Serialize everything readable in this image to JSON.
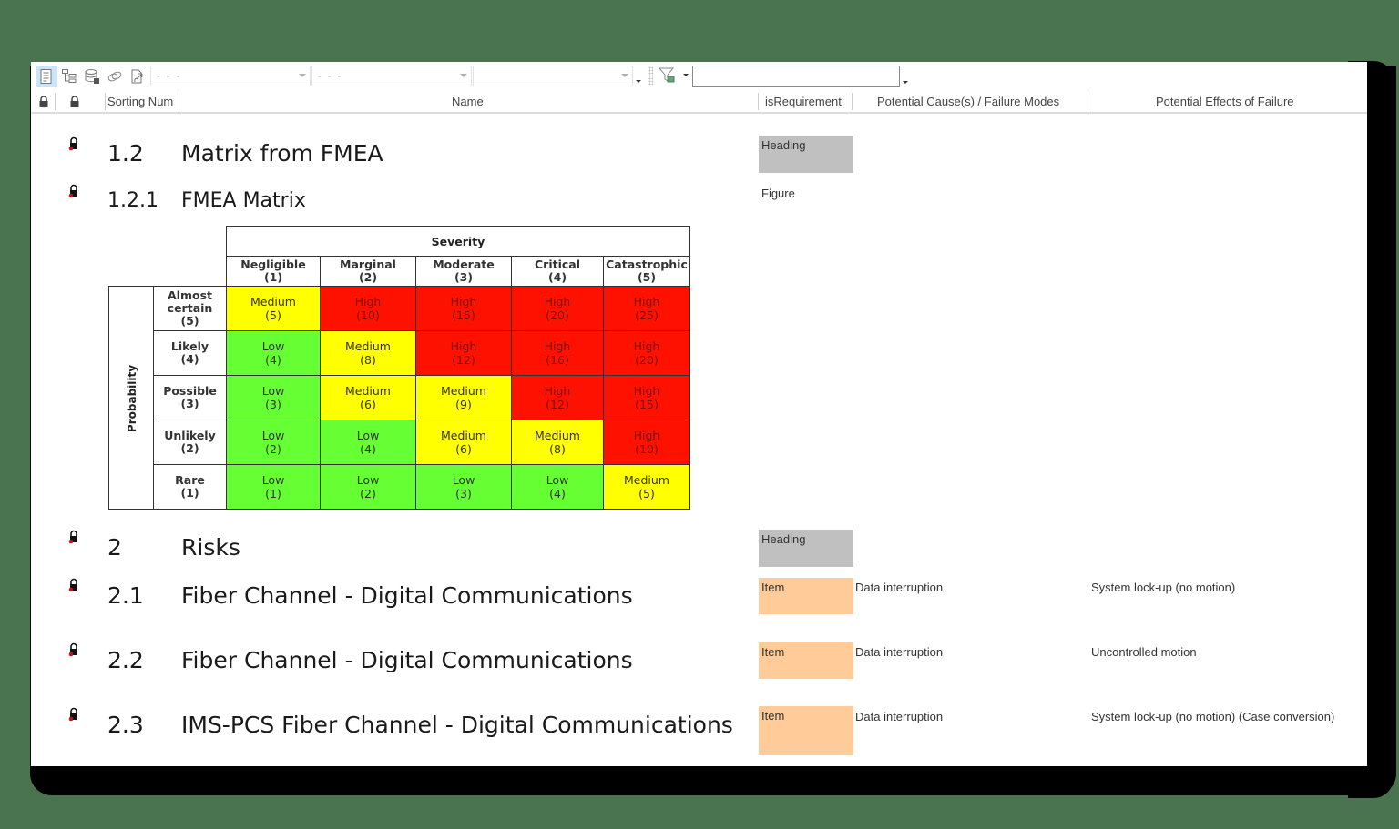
{
  "toolbar": {
    "buttons": [
      {
        "icon": "document-view-icon",
        "active": true
      },
      {
        "icon": "tree-view-icon",
        "active": false
      },
      {
        "icon": "database-icon",
        "active": false
      },
      {
        "icon": "link-icon",
        "active": false
      },
      {
        "icon": "export-icon",
        "active": false
      }
    ],
    "combo1": {
      "value": "- - -"
    },
    "combo2": {
      "value": "- - -"
    },
    "combo3": {
      "value": ""
    },
    "filter_icon": "filter-icon",
    "search": {
      "value": "",
      "placeholder": ""
    }
  },
  "columns": {
    "lock1": "lock-icon",
    "lock2": "lock-icon",
    "sorting_num": "Sorting Num",
    "name": "Name",
    "is_requirement": "isRequirement",
    "potential_causes": "Potential Cause(s) / Failure Modes",
    "potential_effects": "Potential Effects of Failure"
  },
  "rows": [
    {
      "num": "1.2",
      "title": "Matrix from FMEA",
      "type": "Heading",
      "cause": "",
      "effect": ""
    },
    {
      "num": "1.2.1",
      "title": "FMEA Matrix",
      "type": "Figure",
      "cause": "",
      "effect": ""
    },
    {
      "num": "2",
      "title": "Risks",
      "type": "Heading",
      "cause": "",
      "effect": ""
    },
    {
      "num": "2.1",
      "title": "Fiber Channel - Digital Communications",
      "type": "Item",
      "cause": "Data interruption",
      "effect": "System lock-up (no motion)"
    },
    {
      "num": "2.2",
      "title": "Fiber Channel - Digital Communications",
      "type": "Item",
      "cause": "Data interruption",
      "effect": "Uncontrolled motion"
    },
    {
      "num": "2.3",
      "title": "IMS-PCS Fiber Channel - Digital Communications",
      "type": "Item",
      "cause": "Data interruption",
      "effect": "System lock-up (no motion) (Case conversion)"
    }
  ],
  "colors": {
    "heading_tag": "#c0c0c0",
    "item_tag": "#ffcc99",
    "low": "#66ff33",
    "medium": "#ffff00",
    "high": "#ff1100"
  },
  "matrix": {
    "severity_label": "Severity",
    "probability_label": "Probability",
    "severity": [
      {
        "name": "Negligible",
        "score": "(1)"
      },
      {
        "name": "Marginal",
        "score": "(2)"
      },
      {
        "name": "Moderate",
        "score": "(3)"
      },
      {
        "name": "Critical",
        "score": "(4)"
      },
      {
        "name": "Catastrophic",
        "score": "(5)"
      }
    ],
    "probability": [
      {
        "name": "Almost certain",
        "score": "(5)"
      },
      {
        "name": "Likely",
        "score": "(4)"
      },
      {
        "name": "Possible",
        "score": "(3)"
      },
      {
        "name": "Unlikely",
        "score": "(2)"
      },
      {
        "name": "Rare",
        "score": "(1)"
      }
    ],
    "cells": [
      [
        {
          "level": "Medium",
          "score": "(5)"
        },
        {
          "level": "High",
          "score": "(10)"
        },
        {
          "level": "High",
          "score": "(15)"
        },
        {
          "level": "High",
          "score": "(20)"
        },
        {
          "level": "High",
          "score": "(25)"
        }
      ],
      [
        {
          "level": "Low",
          "score": "(4)"
        },
        {
          "level": "Medium",
          "score": "(8)"
        },
        {
          "level": "High",
          "score": "(12)"
        },
        {
          "level": "High",
          "score": "(16)"
        },
        {
          "level": "High",
          "score": "(20)"
        }
      ],
      [
        {
          "level": "Low",
          "score": "(3)"
        },
        {
          "level": "Medium",
          "score": "(6)"
        },
        {
          "level": "Medium",
          "score": "(9)"
        },
        {
          "level": "High",
          "score": "(12)"
        },
        {
          "level": "High",
          "score": "(15)"
        }
      ],
      [
        {
          "level": "Low",
          "score": "(2)"
        },
        {
          "level": "Low",
          "score": "(4)"
        },
        {
          "level": "Medium",
          "score": "(6)"
        },
        {
          "level": "Medium",
          "score": "(8)"
        },
        {
          "level": "High",
          "score": "(10)"
        }
      ],
      [
        {
          "level": "Low",
          "score": "(1)"
        },
        {
          "level": "Low",
          "score": "(2)"
        },
        {
          "level": "Low",
          "score": "(3)"
        },
        {
          "level": "Low",
          "score": "(4)"
        },
        {
          "level": "Medium",
          "score": "(5)"
        }
      ]
    ]
  }
}
